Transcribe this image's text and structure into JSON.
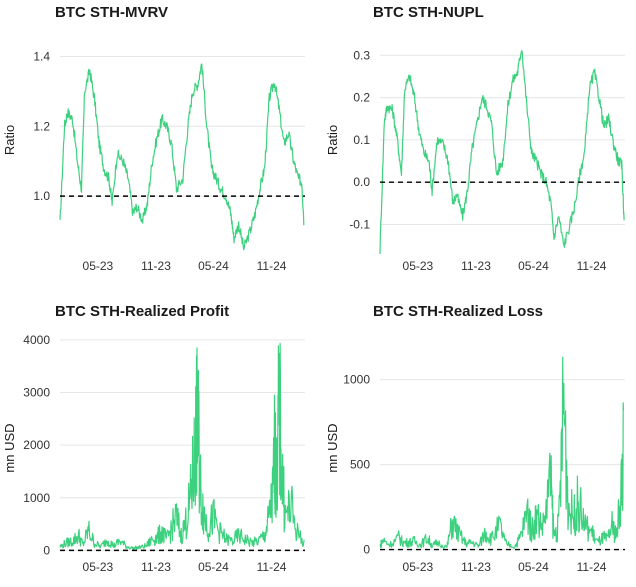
{
  "colors": {
    "series": "#3dd17f",
    "reference": "#000000",
    "grid": "#e6e6e6"
  },
  "chart_data": [
    {
      "type": "line",
      "title": "BTC STH-MVRV",
      "ylabel": "Ratio",
      "xlabel": "",
      "x_ticks": [
        "05-23",
        "11-23",
        "05-24",
        "11-24"
      ],
      "y_ticks": [
        "1.0",
        "1.2",
        "1.4"
      ],
      "ylim": [
        0.84,
        1.47
      ],
      "reference_line": 1.0,
      "grid": true,
      "series": [
        {
          "x": [
            "2023-01-01",
            "2023-01-15",
            "2023-01-25",
            "2023-02-10",
            "2023-02-25",
            "2023-03-10",
            "2023-03-20",
            "2023-04-05",
            "2023-04-20",
            "2023-05-05",
            "2023-05-20",
            "2023-06-05",
            "2023-06-15",
            "2023-07-01",
            "2023-07-20",
            "2023-08-05",
            "2023-08-20",
            "2023-09-01",
            "2023-09-20",
            "2023-10-05",
            "2023-10-20",
            "2023-11-05",
            "2023-11-20",
            "2023-12-05",
            "2023-12-20",
            "2024-01-05",
            "2024-01-25",
            "2024-02-10",
            "2024-02-25",
            "2024-03-12",
            "2024-03-25",
            "2024-04-10",
            "2024-04-25",
            "2024-05-10",
            "2024-05-25",
            "2024-06-10",
            "2024-06-25",
            "2024-07-05",
            "2024-07-20",
            "2024-08-05",
            "2024-08-25",
            "2024-09-10",
            "2024-09-25",
            "2024-10-10",
            "2024-10-25",
            "2024-11-10",
            "2024-11-25",
            "2024-12-10",
            "2024-12-25",
            "2025-01-10",
            "2025-01-25",
            "2025-02-05",
            "2025-02-12"
          ],
          "values": [
            0.92,
            1.2,
            1.24,
            1.22,
            1.1,
            1.02,
            1.3,
            1.36,
            1.28,
            1.15,
            1.08,
            1.05,
            0.98,
            1.12,
            1.1,
            1.05,
            0.95,
            0.97,
            0.93,
            0.98,
            1.1,
            1.17,
            1.22,
            1.2,
            1.15,
            1.02,
            1.05,
            1.2,
            1.3,
            1.32,
            1.38,
            1.2,
            1.08,
            1.05,
            1.02,
            1.0,
            0.95,
            0.88,
            0.92,
            0.85,
            0.9,
            0.95,
            1.02,
            1.08,
            1.28,
            1.33,
            1.25,
            1.15,
            1.18,
            1.1,
            1.05,
            1.04,
            0.92
          ]
        }
      ]
    },
    {
      "type": "line",
      "title": "BTC STH-NUPL",
      "ylabel": "Ratio",
      "xlabel": "",
      "x_ticks": [
        "05-23",
        "11-23",
        "05-24",
        "11-24"
      ],
      "y_ticks": [
        "-0.1",
        "0.0",
        "0.1",
        "0.2",
        "0.3"
      ],
      "ylim": [
        -0.165,
        0.355
      ],
      "reference_line": 0.0,
      "grid": true,
      "series": [
        {
          "x": [
            "2023-01-01",
            "2023-01-15",
            "2023-01-25",
            "2023-02-10",
            "2023-02-25",
            "2023-03-10",
            "2023-03-20",
            "2023-04-05",
            "2023-04-20",
            "2023-05-05",
            "2023-05-20",
            "2023-06-05",
            "2023-06-15",
            "2023-07-01",
            "2023-07-20",
            "2023-08-05",
            "2023-08-20",
            "2023-09-01",
            "2023-09-20",
            "2023-10-05",
            "2023-10-20",
            "2023-11-05",
            "2023-11-20",
            "2023-12-05",
            "2023-12-20",
            "2024-01-05",
            "2024-01-25",
            "2024-02-10",
            "2024-02-25",
            "2024-03-12",
            "2024-03-25",
            "2024-04-10",
            "2024-04-25",
            "2024-05-10",
            "2024-05-25",
            "2024-06-10",
            "2024-06-25",
            "2024-07-05",
            "2024-07-20",
            "2024-08-05",
            "2024-08-25",
            "2024-09-10",
            "2024-09-25",
            "2024-10-10",
            "2024-10-25",
            "2024-11-10",
            "2024-11-25",
            "2024-12-10",
            "2024-12-25",
            "2025-01-10",
            "2025-01-25",
            "2025-02-05",
            "2025-02-12"
          ],
          "values": [
            -0.16,
            0.15,
            0.18,
            0.17,
            0.1,
            0.02,
            0.22,
            0.25,
            0.2,
            0.12,
            0.07,
            0.05,
            -0.02,
            0.1,
            0.09,
            0.05,
            -0.05,
            -0.03,
            -0.08,
            -0.02,
            0.08,
            0.14,
            0.2,
            0.18,
            0.14,
            0.02,
            0.05,
            0.18,
            0.24,
            0.26,
            0.32,
            0.18,
            0.07,
            0.05,
            0.02,
            0.0,
            -0.05,
            -0.13,
            -0.08,
            -0.15,
            -0.1,
            -0.05,
            0.02,
            0.07,
            0.22,
            0.26,
            0.2,
            0.13,
            0.15,
            0.09,
            0.05,
            0.04,
            -0.09
          ]
        }
      ]
    },
    {
      "type": "line",
      "title": "BTC STH-Realized Profit",
      "ylabel": "mn USD",
      "xlabel": "",
      "x_ticks": [
        "05-23",
        "11-23",
        "05-24",
        "11-24"
      ],
      "y_ticks": [
        "0",
        "1000",
        "2000",
        "3000",
        "4000"
      ],
      "ylim": [
        -50,
        4150
      ],
      "reference_line": 0,
      "grid": true,
      "series": [
        {
          "x": [
            "2023-01-01",
            "2023-01-20",
            "2023-02-10",
            "2023-03-01",
            "2023-03-15",
            "2023-04-01",
            "2023-04-20",
            "2023-05-10",
            "2023-06-01",
            "2023-06-20",
            "2023-07-10",
            "2023-08-01",
            "2023-08-20",
            "2023-09-10",
            "2023-10-01",
            "2023-10-20",
            "2023-11-05",
            "2023-11-20",
            "2023-12-05",
            "2023-12-20",
            "2024-01-05",
            "2024-01-20",
            "2024-02-05",
            "2024-02-20",
            "2024-03-01",
            "2024-03-08",
            "2024-03-13",
            "2024-03-20",
            "2024-04-01",
            "2024-04-15",
            "2024-05-01",
            "2024-05-20",
            "2024-06-10",
            "2024-07-01",
            "2024-07-20",
            "2024-08-10",
            "2024-09-01",
            "2024-09-20",
            "2024-10-10",
            "2024-10-25",
            "2024-11-05",
            "2024-11-11",
            "2024-11-18",
            "2024-11-25",
            "2024-12-05",
            "2024-12-15",
            "2025-01-01",
            "2025-01-20",
            "2025-02-12"
          ],
          "values": [
            100,
            200,
            250,
            400,
            150,
            550,
            200,
            100,
            300,
            120,
            250,
            100,
            60,
            80,
            120,
            300,
            350,
            500,
            300,
            600,
            900,
            400,
            800,
            1500,
            2400,
            3300,
            3450,
            1800,
            1000,
            600,
            900,
            500,
            300,
            250,
            400,
            300,
            200,
            250,
            400,
            900,
            1500,
            2800,
            1800,
            4100,
            2000,
            900,
            1200,
            500,
            200
          ]
        }
      ]
    },
    {
      "type": "line",
      "title": "BTC STH-Realized Loss",
      "ylabel": "mn USD",
      "xlabel": "",
      "x_ticks": [
        "05-23",
        "11-23",
        "05-24",
        "11-24"
      ],
      "y_ticks": [
        "0",
        "500",
        "1000"
      ],
      "ylim": [
        -20,
        1280
      ],
      "reference_line": 0,
      "grid": true,
      "series": [
        {
          "x": [
            "2023-01-01",
            "2023-01-10",
            "2023-02-01",
            "2023-03-01",
            "2023-03-15",
            "2023-04-01",
            "2023-04-20",
            "2023-05-10",
            "2023-06-01",
            "2023-06-15",
            "2023-07-01",
            "2023-08-01",
            "2023-08-18",
            "2023-09-10",
            "2023-10-01",
            "2023-10-20",
            "2023-11-10",
            "2023-12-01",
            "2023-12-20",
            "2024-01-15",
            "2024-02-01",
            "2024-03-01",
            "2024-03-20",
            "2024-04-13",
            "2024-04-25",
            "2024-05-10",
            "2024-06-01",
            "2024-06-24",
            "2024-07-05",
            "2024-07-20",
            "2024-08-05",
            "2024-08-20",
            "2024-09-06",
            "2024-09-20",
            "2024-10-10",
            "2024-11-01",
            "2024-11-20",
            "2024-12-10",
            "2024-12-20",
            "2025-01-05",
            "2025-01-20",
            "2025-02-02",
            "2025-02-10"
          ],
          "values": [
            30,
            80,
            40,
            100,
            60,
            60,
            70,
            40,
            100,
            30,
            60,
            20,
            230,
            120,
            50,
            60,
            30,
            150,
            90,
            200,
            60,
            20,
            100,
            320,
            150,
            280,
            200,
            580,
            120,
            200,
            1260,
            350,
            280,
            400,
            200,
            150,
            60,
            100,
            80,
            200,
            120,
            500,
            820
          ]
        }
      ]
    }
  ]
}
